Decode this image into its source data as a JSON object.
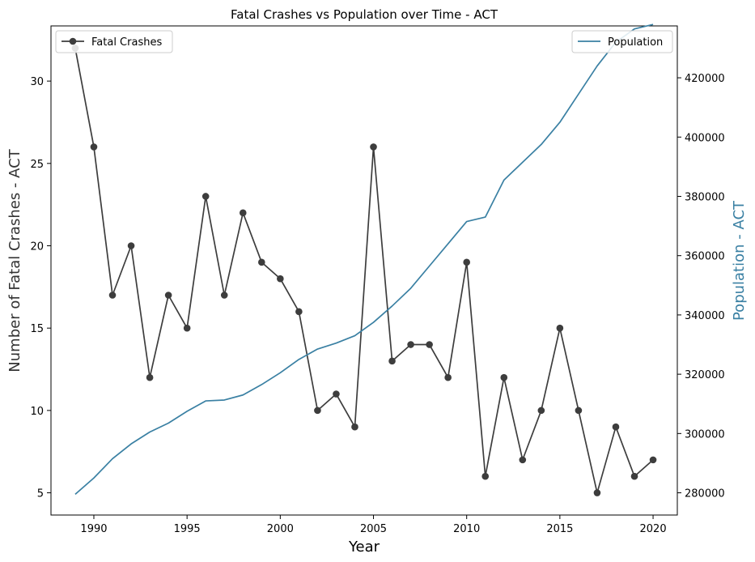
{
  "chart_data": {
    "type": "line",
    "title": "Fatal Crashes vs Population over Time - ACT",
    "xlabel": "Year",
    "ylabel": "Number of Fatal Crashes - ACT",
    "y2label": "Population - ACT",
    "xlim": [
      1987.7,
      2021.3
    ],
    "ylim": [
      3.65,
      33.35
    ],
    "y2lim": [
      272500,
      437500
    ],
    "x_ticks": [
      1990,
      1995,
      2000,
      2005,
      2010,
      2015,
      2020
    ],
    "y_ticks": [
      5,
      10,
      15,
      20,
      25,
      30
    ],
    "y2_ticks": [
      280000,
      300000,
      320000,
      340000,
      360000,
      380000,
      400000,
      420000
    ],
    "x": [
      1989,
      1990,
      1991,
      1992,
      1993,
      1994,
      1995,
      1996,
      1997,
      1998,
      1999,
      2000,
      2001,
      2002,
      2003,
      2004,
      2005,
      2006,
      2007,
      2008,
      2009,
      2010,
      2011,
      2012,
      2013,
      2014,
      2015,
      2016,
      2017,
      2018,
      2019,
      2020
    ],
    "series": [
      {
        "name": "Fatal Crashes",
        "axis": "left",
        "color": "#3d3d3d",
        "marker": "circle",
        "values": [
          32,
          26,
          17,
          20,
          12,
          17,
          15,
          23,
          17,
          22,
          19,
          18,
          16,
          10,
          11,
          9,
          26,
          13,
          14,
          14,
          12,
          19,
          6,
          12,
          7,
          10,
          15,
          10,
          5,
          9,
          6,
          7
        ]
      },
      {
        "name": "Population",
        "axis": "right",
        "color": "#3a80a3",
        "marker": "none",
        "values": [
          279500,
          285000,
          291500,
          296500,
          300500,
          303500,
          307500,
          311000,
          311300,
          313000,
          316500,
          320500,
          325000,
          328500,
          330500,
          333000,
          337500,
          343000,
          349000,
          356500,
          364000,
          371500,
          373000,
          385500,
          391500,
          397500,
          405000,
          414500,
          424000,
          432000,
          436500,
          438000
        ]
      }
    ],
    "legend_left_placement": "upper-left",
    "legend_right_placement": "upper-right",
    "grid": false
  }
}
